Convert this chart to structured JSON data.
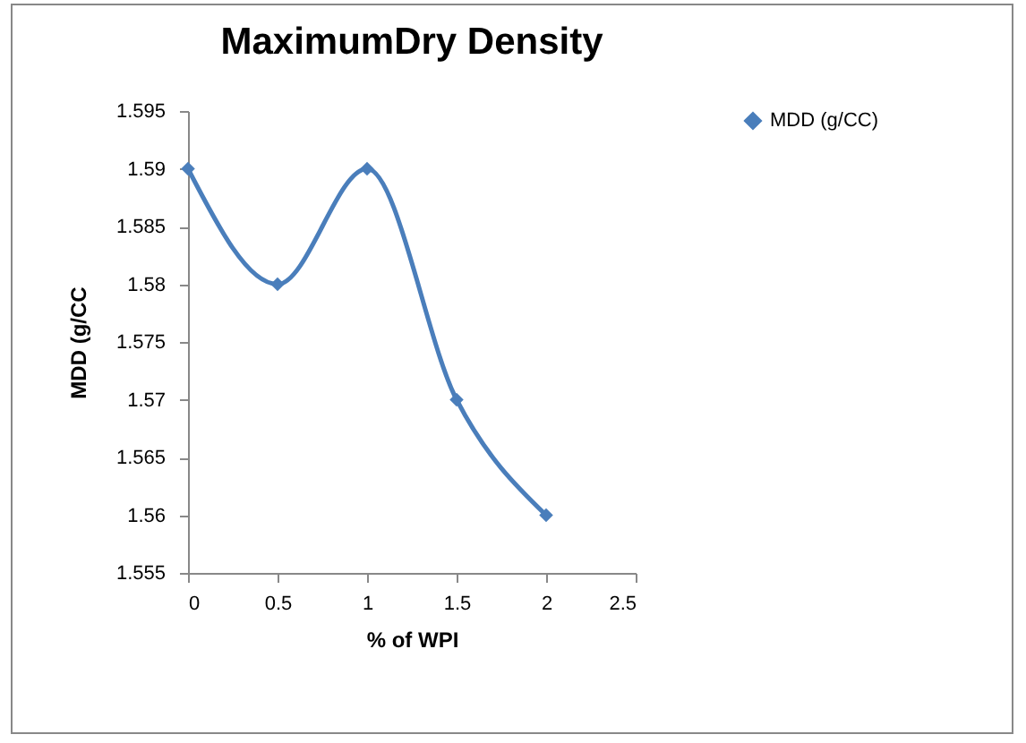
{
  "chart_data": {
    "type": "line",
    "title": "MaximumDry Density",
    "xlabel": "% of WPI",
    "ylabel": "MDD  (g/CC",
    "x": [
      0,
      0.5,
      1,
      1.5,
      2
    ],
    "series": [
      {
        "name": "MDD (g/CC)",
        "color": "#4a7ebb",
        "values": [
          1.59,
          1.58,
          1.59,
          1.57,
          1.56
        ]
      }
    ],
    "xlim": [
      0,
      2.5
    ],
    "xticks": [
      0,
      0.5,
      1,
      1.5,
      2,
      2.5
    ],
    "ylim": [
      1.555,
      1.595
    ],
    "yticks": [
      1.555,
      1.56,
      1.565,
      1.57,
      1.575,
      1.58,
      1.585,
      1.59,
      1.595
    ],
    "marker": "diamond",
    "line_style": "solid",
    "legend": "right",
    "grid": false
  }
}
